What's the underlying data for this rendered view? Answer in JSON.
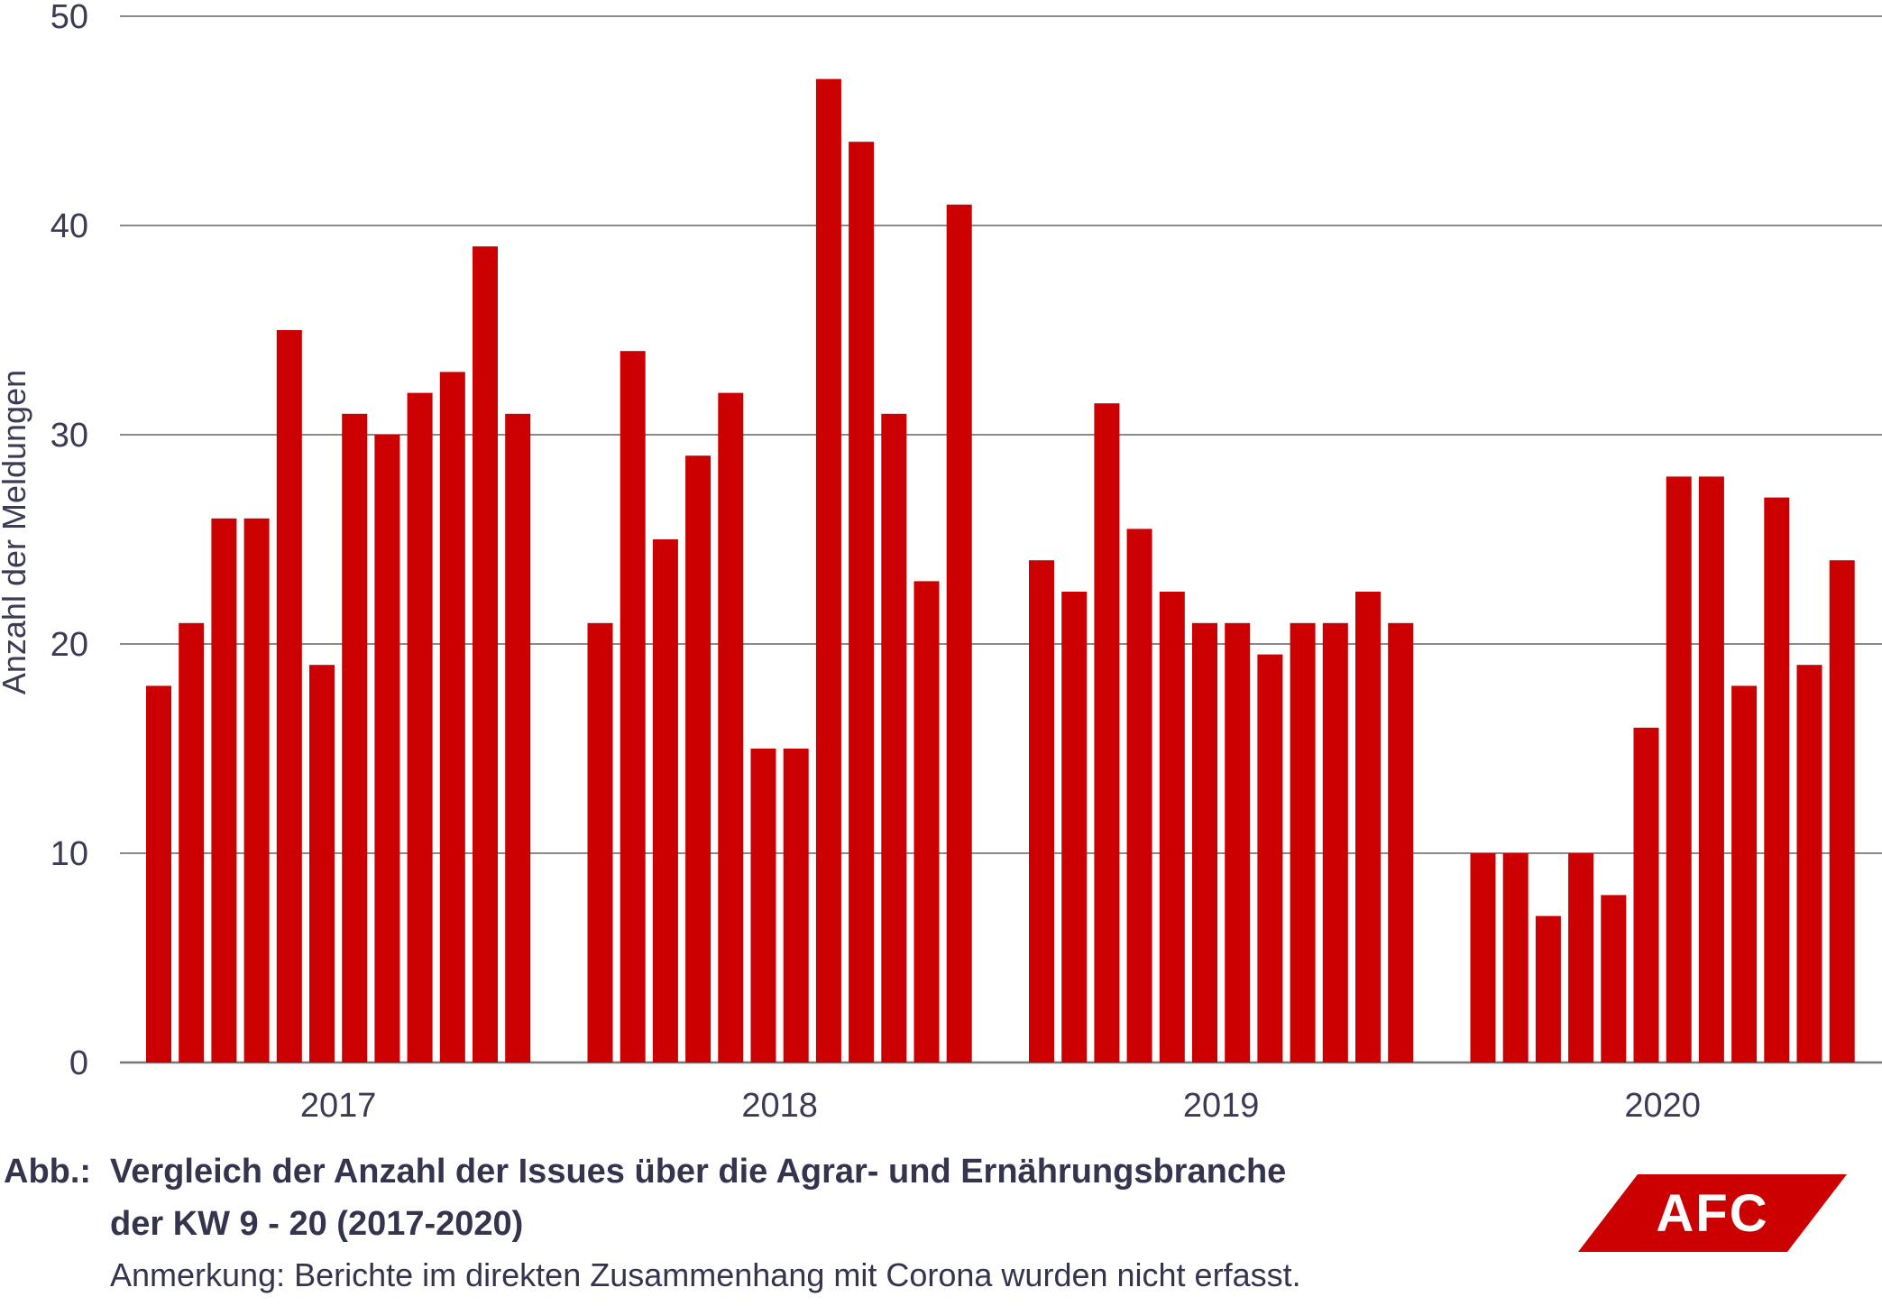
{
  "chart_data": {
    "type": "bar",
    "ylabel": "Anzahl der Meldungen",
    "xlabel": "",
    "ylim": [
      0,
      50
    ],
    "yticks": [
      0,
      10,
      20,
      30,
      40,
      50
    ],
    "grid": true,
    "bar_color": "#cc0000",
    "groups": [
      {
        "label": "2017",
        "values": [
          18,
          21,
          26,
          26,
          35,
          19,
          31,
          30,
          32,
          33,
          39,
          31
        ]
      },
      {
        "label": "2018",
        "values": [
          21,
          34,
          25,
          29,
          32,
          15,
          15,
          47,
          44,
          31,
          23,
          41
        ]
      },
      {
        "label": "2019",
        "values": [
          24,
          22.5,
          31.5,
          25.5,
          22.5,
          21,
          21,
          19.5,
          21,
          21,
          22.5,
          21
        ]
      },
      {
        "label": "2020",
        "values": [
          10,
          10,
          7,
          10,
          8,
          16,
          28,
          28,
          18,
          27,
          19,
          24
        ]
      }
    ]
  },
  "caption": {
    "prefix": "Abb.:",
    "line1": "Vergleich der Anzahl der Issues über die Agrar- und Ernährungsbranche",
    "line2": "der KW 9 - 20 (2017-2020)",
    "note": "Anmerkung: Berichte im direkten Zusammenhang mit Corona wurden nicht erfasst."
  },
  "logo": {
    "text": "AFC",
    "color": "#cc0000"
  }
}
